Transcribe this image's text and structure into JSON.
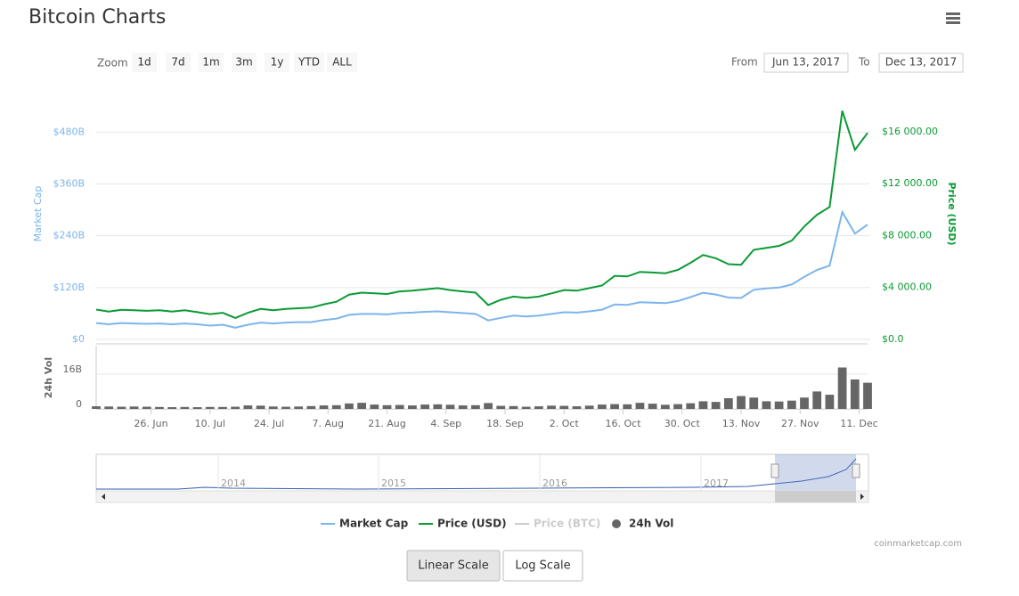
{
  "header": {
    "title": "Bitcoin Charts"
  },
  "range_selector": {
    "zoom_label": "Zoom",
    "buttons": [
      "1d",
      "7d",
      "1m",
      "3m",
      "1y",
      "YTD",
      "ALL"
    ],
    "from_label": "From",
    "from": "Jun 13, 2017",
    "to_label": "To",
    "to": "Dec 13, 2017"
  },
  "chart_data": {
    "type": "stock",
    "x": [
      "2017-06-13",
      "2017-06-16",
      "2017-06-19",
      "2017-06-22",
      "2017-06-25",
      "2017-06-28",
      "2017-07-01",
      "2017-07-04",
      "2017-07-07",
      "2017-07-10",
      "2017-07-13",
      "2017-07-16",
      "2017-07-19",
      "2017-07-22",
      "2017-07-25",
      "2017-07-28",
      "2017-07-31",
      "2017-08-03",
      "2017-08-06",
      "2017-08-09",
      "2017-08-12",
      "2017-08-15",
      "2017-08-18",
      "2017-08-21",
      "2017-08-24",
      "2017-08-27",
      "2017-08-30",
      "2017-09-02",
      "2017-09-05",
      "2017-09-08",
      "2017-09-11",
      "2017-09-14",
      "2017-09-17",
      "2017-09-20",
      "2017-09-23",
      "2017-09-26",
      "2017-09-29",
      "2017-10-02",
      "2017-10-05",
      "2017-10-08",
      "2017-10-11",
      "2017-10-14",
      "2017-10-17",
      "2017-10-20",
      "2017-10-23",
      "2017-10-26",
      "2017-10-29",
      "2017-11-01",
      "2017-11-04",
      "2017-11-07",
      "2017-11-10",
      "2017-11-13",
      "2017-11-16",
      "2017-11-19",
      "2017-11-22",
      "2017-11-25",
      "2017-11-28",
      "2017-12-01",
      "2017-12-04",
      "2017-12-07",
      "2017-12-10",
      "2017-12-13"
    ],
    "xlim": [
      "2017-06-13",
      "2017-12-13"
    ],
    "xticks": [
      {
        "value": "2017-06-26",
        "label": "26. Jun"
      },
      {
        "value": "2017-07-10",
        "label": "10. Jul"
      },
      {
        "value": "2017-07-24",
        "label": "24. Jul"
      },
      {
        "value": "2017-08-07",
        "label": "7. Aug"
      },
      {
        "value": "2017-08-21",
        "label": "21. Aug"
      },
      {
        "value": "2017-09-04",
        "label": "4. Sep"
      },
      {
        "value": "2017-09-18",
        "label": "18. Sep"
      },
      {
        "value": "2017-10-02",
        "label": "2. Oct"
      },
      {
        "value": "2017-10-16",
        "label": "16. Oct"
      },
      {
        "value": "2017-10-30",
        "label": "30. Oct"
      },
      {
        "value": "2017-11-13",
        "label": "13. Nov"
      },
      {
        "value": "2017-11-27",
        "label": "27. Nov"
      },
      {
        "value": "2017-12-11",
        "label": "11. Dec"
      }
    ],
    "y_title": "Market Cap",
    "ylim": [
      0,
      590
    ],
    "yticks": [
      {
        "value": 0,
        "label": "$0"
      },
      {
        "value": 120,
        "label": "$120B"
      },
      {
        "value": 240,
        "label": "$240B"
      },
      {
        "value": 360,
        "label": "$360B"
      },
      {
        "value": 480,
        "label": "$480B"
      }
    ],
    "y2_title": "Price (USD)",
    "y2lim": [
      0,
      19620
    ],
    "y2ticks": [
      {
        "value": 0,
        "label": "$0.0"
      },
      {
        "value": 4000,
        "label": "$4 000.00"
      },
      {
        "value": 8000,
        "label": "$8 000.00"
      },
      {
        "value": 12000,
        "label": "$12 000.00"
      },
      {
        "value": 16000,
        "label": "$16 000.00"
      }
    ],
    "y3_title": "24h Vol",
    "y3lim": [
      0,
      29
    ],
    "y3ticks": [
      0,
      {
        "value": 16,
        "label": "16B"
      }
    ],
    "grid": true,
    "series": [
      {
        "name": "Market Cap",
        "color": "#7cb5ec",
        "axis": "y",
        "type": "line",
        "values": [
          38,
          35,
          38,
          37,
          36,
          37,
          35,
          37,
          35,
          32,
          34,
          27,
          34,
          39,
          37,
          39,
          40,
          40,
          45,
          48,
          57,
          59,
          59,
          58,
          61,
          62,
          64,
          65,
          63,
          61,
          59,
          44,
          50,
          55,
          53,
          55,
          59,
          63,
          62,
          65,
          69,
          81,
          80,
          86,
          85,
          84,
          89,
          98,
          108,
          104,
          97,
          96,
          115,
          118,
          120,
          127,
          145,
          161,
          171,
          295,
          245,
          266
        ]
      },
      {
        "name": "Price (USD)",
        "color": "#0b9a35",
        "axis": "y2",
        "type": "line",
        "values": [
          2300,
          2150,
          2280,
          2250,
          2200,
          2250,
          2150,
          2250,
          2100,
          1950,
          2050,
          1650,
          2050,
          2350,
          2250,
          2350,
          2400,
          2450,
          2700,
          2900,
          3450,
          3600,
          3550,
          3500,
          3700,
          3750,
          3850,
          3950,
          3800,
          3700,
          3600,
          2650,
          3050,
          3300,
          3200,
          3300,
          3550,
          3800,
          3750,
          3950,
          4150,
          4900,
          4850,
          5200,
          5150,
          5100,
          5350,
          5900,
          6500,
          6250,
          5800,
          5750,
          6900,
          7050,
          7200,
          7600,
          8700,
          9600,
          10200,
          17600,
          14600,
          15900
        ]
      },
      {
        "name": "Price (BTC)",
        "color": "#cccccc",
        "visible": false
      },
      {
        "name": "24h Vol",
        "color": "#666666",
        "axis": "y3",
        "type": "column",
        "values": [
          1.2,
          1.1,
          1.0,
          1.1,
          1.0,
          0.9,
          0.8,
          0.9,
          0.8,
          0.9,
          0.9,
          1.0,
          1.6,
          1.5,
          1.1,
          1.0,
          1.1,
          1.3,
          1.6,
          1.7,
          2.5,
          2.8,
          2.0,
          1.7,
          1.8,
          1.6,
          2.0,
          2.1,
          1.9,
          1.6,
          1.7,
          2.7,
          1.4,
          1.3,
          1.0,
          1.2,
          1.5,
          1.4,
          1.2,
          1.5,
          2.0,
          2.2,
          2.1,
          2.8,
          2.4,
          1.9,
          2.2,
          2.6,
          3.5,
          3.2,
          4.9,
          5.9,
          5.2,
          3.5,
          3.4,
          3.8,
          5.2,
          8.0,
          6.5,
          19.0,
          13.5,
          12.0
        ]
      }
    ],
    "navigator_labels": [
      "2014",
      "2015",
      "2016",
      "2017"
    ]
  },
  "credits": "coinmarketcap.com",
  "scale_buttons": [
    "Linear Scale",
    "Log Scale"
  ]
}
